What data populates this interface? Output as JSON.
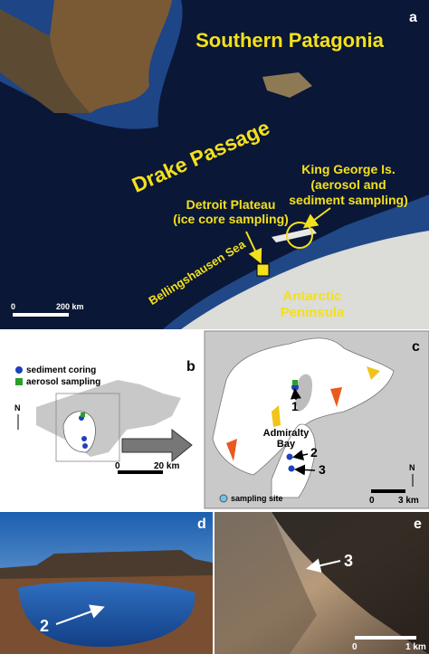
{
  "panels": {
    "a": {
      "letter": "a",
      "region": "Southern Patagonia",
      "passage": "Drake Passage",
      "king_george": [
        "King George Is.",
        "(aerosol and",
        "sediment sampling)"
      ],
      "detroit": [
        "Detroit Plateau",
        "(ice core sampling)"
      ],
      "sea": "Bellingshausen Sea",
      "peninsula": [
        "Antarctic",
        "Peninsula"
      ],
      "scale": [
        "0",
        "200 km"
      ]
    },
    "b": {
      "letter": "b",
      "legend": [
        "sediment coring",
        "aerosol sampling"
      ],
      "north": "N",
      "scale": [
        "0",
        "20 km"
      ]
    },
    "c": {
      "letter": "c",
      "sites": [
        "1",
        "2",
        "3"
      ],
      "bay": [
        "Admiralty",
        "Bay"
      ],
      "legend": "sampling site",
      "north": "N",
      "scale": [
        "0",
        "3 km"
      ]
    },
    "d": {
      "letter": "d",
      "site": "2"
    },
    "e": {
      "letter": "e",
      "site": "3",
      "scale": [
        "0",
        "1 km"
      ]
    }
  }
}
